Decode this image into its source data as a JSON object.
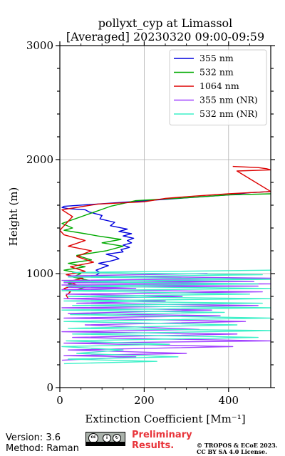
{
  "chart_data": {
    "type": "line",
    "title_lines": [
      "pollyxt_cyp at Limassol",
      "[Averaged] 20230320 09:00-09:59"
    ],
    "xlabel": "Extinction Coefficient [Mm⁻¹]",
    "ylabel": "Height (m)",
    "xlim": [
      0,
      500
    ],
    "ylim": [
      0,
      3000
    ],
    "xticks": [
      0,
      200,
      400
    ],
    "yticks": [
      0,
      1000,
      2000,
      3000
    ],
    "grid": true,
    "legend_position": "top-right",
    "series": [
      {
        "name": "355 nm",
        "color": "#0000dd",
        "x": [
          80,
          88,
          95,
          86,
          100,
          115,
          92,
          120,
          140,
          130,
          110,
          150,
          145,
          165,
          150,
          170,
          160,
          175,
          150,
          170,
          140,
          160,
          120,
          130,
          95,
          100,
          70,
          60,
          20,
          5,
          10,
          400,
          450,
          500
        ],
        "y": [
          975,
          990,
          1010,
          1030,
          1050,
          1070,
          1090,
          1110,
          1130,
          1150,
          1170,
          1190,
          1210,
          1230,
          1250,
          1270,
          1290,
          1310,
          1330,
          1350,
          1370,
          1390,
          1420,
          1450,
          1480,
          1510,
          1540,
          1560,
          1570,
          1580,
          1590,
          1690,
          1710,
          1720
        ]
      },
      {
        "name": "532 nm",
        "color": "#00aa00",
        "x": [
          30,
          60,
          20,
          70,
          30,
          50,
          10,
          60,
          20,
          75,
          40,
          110,
          150,
          100,
          145,
          90,
          60,
          10,
          30,
          5,
          120,
          180,
          300,
          400,
          500
        ],
        "y": [
          850,
          880,
          910,
          940,
          970,
          1000,
          1030,
          1060,
          1090,
          1120,
          1160,
          1200,
          1240,
          1270,
          1300,
          1330,
          1350,
          1380,
          1400,
          1440,
          1590,
          1640,
          1665,
          1690,
          1700
        ]
      },
      {
        "name": "1064 nm",
        "color": "#dd0000",
        "x": [
          20,
          15,
          25,
          10,
          40,
          20,
          55,
          15,
          60,
          25,
          80,
          40,
          75,
          20,
          60,
          10,
          0,
          30,
          5,
          90,
          200,
          250,
          320,
          400,
          500,
          420,
          500,
          490,
          470,
          410
        ],
        "y": [
          780,
          810,
          840,
          870,
          900,
          930,
          960,
          990,
          1020,
          1060,
          1100,
          1150,
          1200,
          1240,
          1290,
          1340,
          1380,
          1500,
          1560,
          1610,
          1630,
          1660,
          1680,
          1700,
          1720,
          1900,
          1910,
          1920,
          1930,
          1940
        ]
      },
      {
        "name": "355 nm (NR)",
        "color": "#a040ff",
        "x": [
          5,
          180,
          10,
          300,
          20,
          410,
          10,
          500,
          30,
          420,
          5,
          330,
          60,
          440,
          10,
          380,
          20,
          360,
          5,
          470,
          40,
          250,
          10,
          290,
          15,
          480,
          5,
          180,
          20,
          470,
          5,
          500,
          10,
          460,
          5,
          500,
          20,
          350
        ],
        "y": [
          240,
          270,
          280,
          300,
          330,
          360,
          390,
          410,
          440,
          470,
          490,
          510,
          550,
          580,
          610,
          630,
          650,
          680,
          700,
          720,
          740,
          760,
          780,
          800,
          820,
          840,
          860,
          870,
          880,
          890,
          900,
          910,
          920,
          930,
          940,
          960,
          980,
          1000
        ]
      },
      {
        "name": "532 nm (NR)",
        "color": "#3cf0c8",
        "x": [
          10,
          230,
          20,
          280,
          40,
          150,
          5,
          260,
          15,
          470,
          30,
          500,
          20,
          420,
          10,
          500,
          25,
          390,
          5,
          500,
          30,
          480,
          10,
          500,
          20,
          450,
          5,
          500,
          15,
          470,
          10,
          500,
          20,
          480,
          30,
          500
        ],
        "y": [
          210,
          230,
          250,
          270,
          300,
          330,
          360,
          380,
          410,
          440,
          470,
          500,
          520,
          550,
          580,
          610,
          640,
          660,
          680,
          700,
          720,
          740,
          760,
          780,
          800,
          820,
          850,
          870,
          890,
          910,
          930,
          950,
          970,
          990,
          1010,
          1030
        ]
      }
    ]
  },
  "footer": {
    "version": "Version: 3.6",
    "method": "Method: Raman",
    "preliminary_line1": "Preliminary",
    "preliminary_line2": "Results.",
    "license_line1": "© TROPOS & ECoE 2023.",
    "license_line2": "CC BY SA 4.0 License.",
    "cc_badge_icons": [
      "cc-icon",
      "by-icon",
      "sa-icon"
    ]
  }
}
